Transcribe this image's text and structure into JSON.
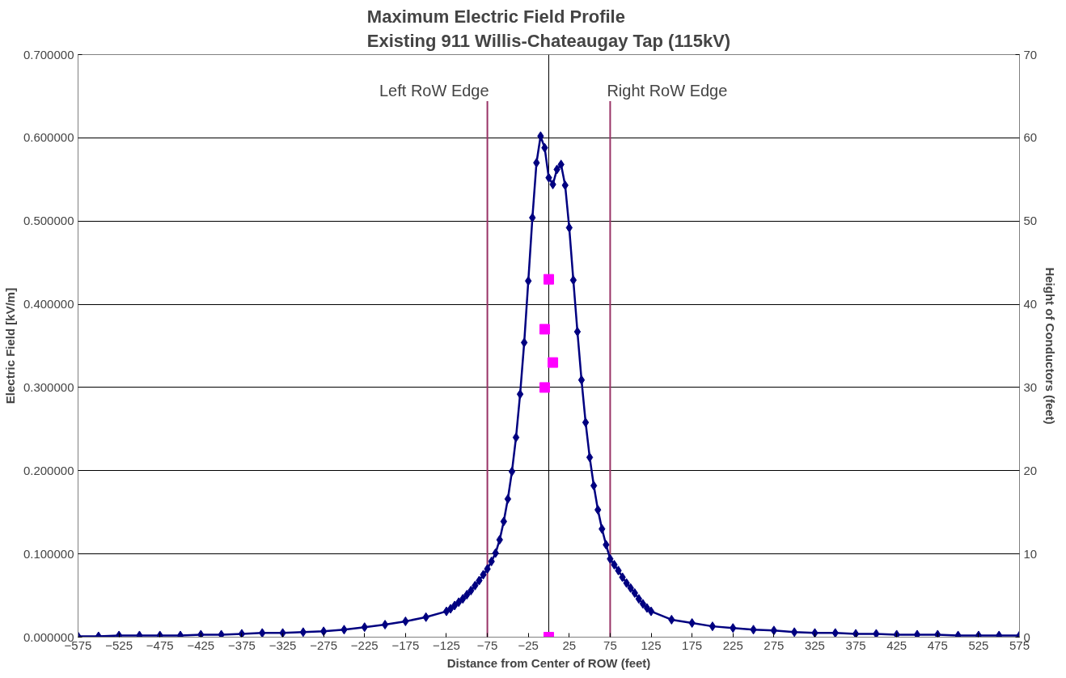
{
  "chart_data": {
    "type": "line",
    "title": "Maximum Electric Field Profile\nExisting 911 Willis-Chateaugay Tap (115kV)",
    "xlabel": "Distance from Center of ROW (feet)",
    "ylabel": "Electric Field [kV/m]",
    "y2label": "Height of Conductors (feet)",
    "xlim": [
      -575,
      575
    ],
    "xticks": [
      -575,
      -525,
      -475,
      -425,
      -375,
      -325,
      -275,
      -225,
      -175,
      -125,
      -75,
      -25,
      25,
      75,
      125,
      175,
      225,
      275,
      325,
      375,
      425,
      475,
      525,
      575
    ],
    "ylim": [
      0,
      0.7
    ],
    "yticks": [
      {
        "value": 0,
        "label": "0.000000"
      },
      {
        "value": 0.1,
        "label": "0.100000"
      },
      {
        "value": 0.2,
        "label": "0.200000"
      },
      {
        "value": 0.3,
        "label": "0.300000"
      },
      {
        "value": 0.4,
        "label": "0.400000"
      },
      {
        "value": 0.5,
        "label": "0.500000"
      },
      {
        "value": 0.6,
        "label": "0.600000"
      },
      {
        "value": 0.7,
        "label": "0.700000"
      }
    ],
    "y2lim": [
      0,
      70
    ],
    "y2ticks": [
      0,
      10,
      20,
      30,
      40,
      50,
      60,
      70
    ],
    "grid": "y",
    "line_style": "solid",
    "series": [
      {
        "color": "#000080",
        "marker": "diamond",
        "x": [
          -575,
          -550,
          -525,
          -500,
          -475,
          -450,
          -425,
          -400,
          -375,
          -350,
          -325,
          -300,
          -275,
          -250,
          -225,
          -200,
          -175,
          -150,
          -125,
          -120,
          -115,
          -110,
          -105,
          -100,
          -95,
          -90,
          -85,
          -80,
          -75,
          -70,
          -65,
          -60,
          -55,
          -50,
          -45,
          -40,
          -35,
          -30,
          -25,
          -20,
          -15,
          -10,
          -5,
          0,
          5,
          10,
          15,
          20,
          25,
          30,
          35,
          40,
          45,
          50,
          55,
          60,
          65,
          70,
          75,
          80,
          85,
          90,
          95,
          100,
          105,
          110,
          115,
          120,
          125,
          150,
          175,
          200,
          225,
          250,
          275,
          300,
          325,
          350,
          375,
          400,
          425,
          450,
          475,
          500,
          525,
          550,
          575
        ],
        "values": [
          0.001,
          0.001,
          0.002,
          0.002,
          0.002,
          0.002,
          0.003,
          0.003,
          0.004,
          0.005,
          0.005,
          0.006,
          0.007,
          0.009,
          0.012,
          0.015,
          0.019,
          0.024,
          0.031,
          0.034,
          0.038,
          0.042,
          0.046,
          0.051,
          0.056,
          0.062,
          0.068,
          0.075,
          0.082,
          0.091,
          0.101,
          0.117,
          0.139,
          0.166,
          0.199,
          0.24,
          0.292,
          0.354,
          0.428,
          0.504,
          0.57,
          0.602,
          0.588,
          0.552,
          0.544,
          0.562,
          0.568,
          0.543,
          0.492,
          0.429,
          0.367,
          0.309,
          0.258,
          0.216,
          0.182,
          0.153,
          0.13,
          0.111,
          0.094,
          0.087,
          0.08,
          0.072,
          0.065,
          0.059,
          0.053,
          0.046,
          0.04,
          0.035,
          0.031,
          0.021,
          0.017,
          0.013,
          0.011,
          0.009,
          0.008,
          0.006,
          0.005,
          0.005,
          0.004,
          0.004,
          0.003,
          0.003,
          0.003,
          0.002,
          0.002,
          0.002,
          0.002
        ]
      },
      {
        "type": "scatter",
        "axis": "y2",
        "color": "#ff00ff",
        "marker": "square",
        "x": [
          0,
          -5,
          5,
          -5,
          0
        ],
        "values": [
          43,
          37,
          33,
          30,
          0
        ]
      }
    ],
    "ref_lines": [
      {
        "axis": "x",
        "value": -75,
        "label": "Left RoW Edge",
        "color": "#993366"
      },
      {
        "axis": "x",
        "value": 75,
        "label": "Right RoW Edge",
        "color": "#993366"
      },
      {
        "axis": "x",
        "value": 0,
        "label": null,
        "color": "#000000"
      }
    ]
  }
}
